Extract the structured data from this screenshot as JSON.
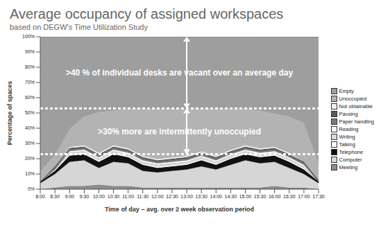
{
  "chart_data": {
    "type": "area",
    "stacked": true,
    "title": "Average occupancy of assigned workspaces",
    "subtitle": "based on DEGW's Time Utilization Study",
    "x_label": "Time of day – avg. over 2 week observation period",
    "y_label": "Percentage of spaces",
    "categories": [
      "8:00",
      "8:30",
      "9:00",
      "9:30",
      "10:00",
      "10:30",
      "11:00",
      "11:30",
      "12:00",
      "12:30",
      "13:00",
      "13:30",
      "14:00",
      "14:30",
      "15:00",
      "15:30",
      "16:00",
      "16:30",
      "17:00",
      "17:30"
    ],
    "series": [
      {
        "name": "Empty",
        "color": "#9e9e9e",
        "values": [
          88,
          77,
          60,
          52,
          49,
          48,
          47,
          47,
          47,
          47,
          47,
          47,
          47,
          47,
          47,
          48,
          50,
          52,
          56,
          82
        ]
      },
      {
        "name": "Unoccupied",
        "color": "#b3b3b3",
        "values": [
          7,
          8,
          12,
          19,
          27,
          23,
          26,
          31,
          33,
          32,
          31,
          28,
          31,
          27,
          24,
          25,
          22,
          24,
          26,
          12
        ]
      },
      {
        "name": "Not obtainable",
        "color": "#f2f2f2",
        "values": [
          0,
          0,
          1,
          1,
          1,
          1,
          1,
          1,
          1,
          1,
          1,
          1,
          1,
          1,
          1,
          1,
          1,
          1,
          0,
          0
        ]
      },
      {
        "name": "Pausing",
        "color": "#5a5a5a",
        "values": [
          0,
          1,
          1,
          1,
          1,
          1,
          1,
          1,
          1,
          1,
          1,
          1,
          1,
          1,
          1,
          1,
          1,
          1,
          1,
          1
        ]
      },
      {
        "name": "Paper handling",
        "color": "#7a7a7a",
        "values": [
          0,
          1,
          1,
          1,
          1,
          1,
          1,
          1,
          1,
          1,
          1,
          1,
          1,
          1,
          1,
          1,
          1,
          1,
          1,
          0
        ]
      },
      {
        "name": "Reading",
        "color": "#ffffff",
        "values": [
          0,
          0,
          1,
          1,
          1,
          1,
          1,
          1,
          1,
          1,
          1,
          1,
          1,
          1,
          1,
          1,
          1,
          1,
          1,
          0
        ]
      },
      {
        "name": "Writing",
        "color": "#dcdcdc",
        "values": [
          0,
          0,
          1,
          1,
          1,
          1,
          1,
          1,
          1,
          1,
          1,
          1,
          1,
          1,
          1,
          1,
          1,
          1,
          1,
          0
        ]
      },
      {
        "name": "Talking",
        "color": "#fafafa",
        "values": [
          0,
          1,
          1,
          1,
          1,
          1,
          1,
          1,
          1,
          1,
          1,
          1,
          1,
          1,
          1,
          1,
          1,
          1,
          1,
          0
        ]
      },
      {
        "name": "Telephone",
        "color": "#111111",
        "values": [
          1,
          2,
          4,
          4,
          4,
          5,
          4,
          4,
          3,
          3,
          3,
          4,
          3,
          4,
          4,
          4,
          4,
          4,
          3,
          1
        ]
      },
      {
        "name": "Computer",
        "color": "#d6d6d6",
        "values": [
          4,
          9,
          16,
          17,
          11,
          16,
          15,
          11,
          10,
          11,
          12,
          14,
          12,
          15,
          18,
          16,
          16,
          13,
          9,
          4
        ]
      },
      {
        "name": "Meeting",
        "color": "#8c8c8c",
        "values": [
          0,
          1,
          2,
          2,
          3,
          2,
          2,
          1,
          1,
          1,
          1,
          1,
          1,
          1,
          1,
          1,
          2,
          1,
          1,
          0
        ]
      }
    ],
    "ylim": [
      0,
      100
    ],
    "yticks": [
      {
        "value": 0,
        "label": "0%"
      },
      {
        "value": 10,
        "label": "10%"
      },
      {
        "value": 20,
        "label": "20%"
      },
      {
        "value": 30,
        "label": "30%"
      },
      {
        "value": 40,
        "label": "40%"
      },
      {
        "value": 50,
        "label": "50%"
      },
      {
        "value": 60,
        "label": "60%"
      },
      {
        "value": 70,
        "label": "70%"
      },
      {
        "value": 80,
        "label": "80%"
      },
      {
        "value": 90,
        "label": "90%"
      },
      {
        "value": 100,
        "label": "100%"
      }
    ],
    "reference_lines": [
      53,
      23
    ],
    "annotations": [
      ">40 % of individual desks are vacant over an average day",
      ">30% more are intermittently unoccupied"
    ],
    "legend": "right",
    "grid": false
  }
}
